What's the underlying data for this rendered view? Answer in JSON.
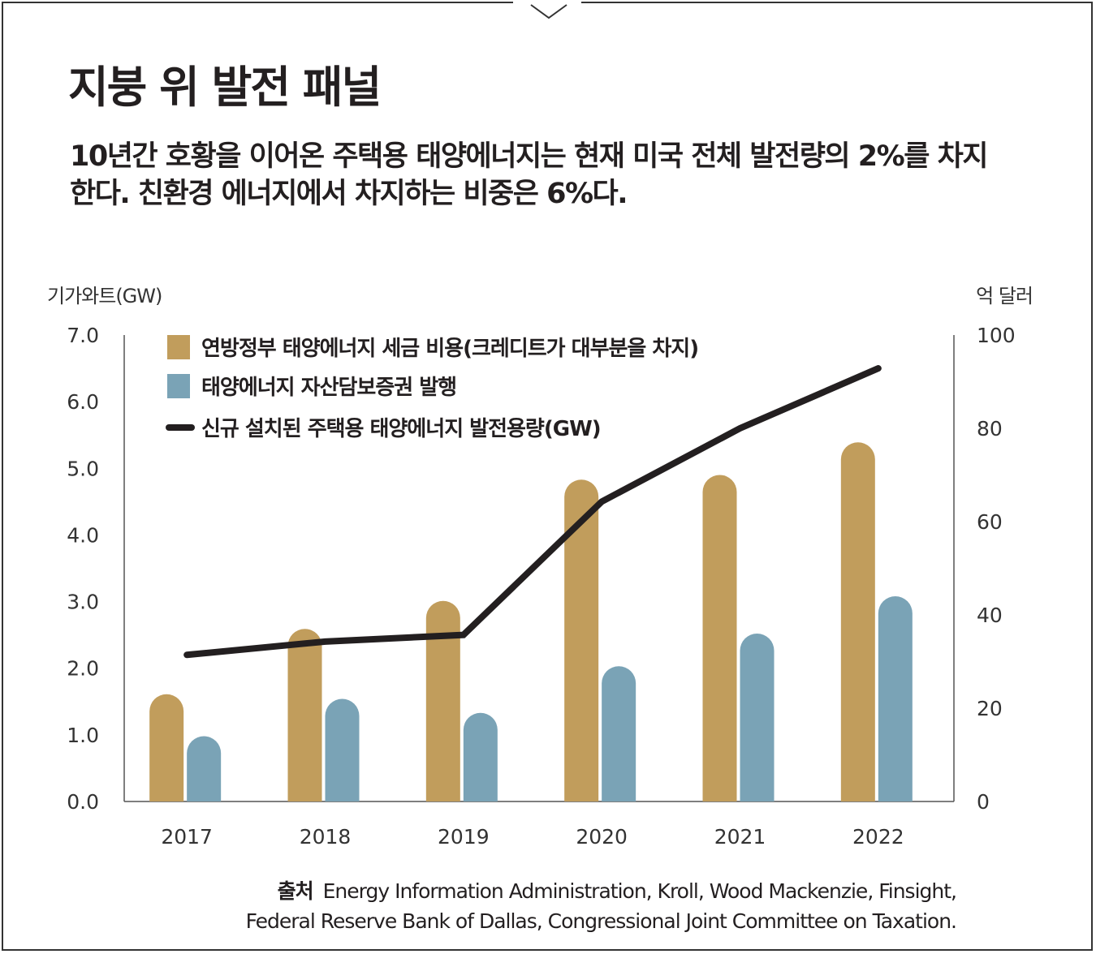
{
  "colors": {
    "tax_credit": "#c19d5c",
    "abs": "#7aa3b6",
    "line": "#231f20",
    "text": "#231f20",
    "frame": "#333333"
  },
  "header": {
    "title": "지붕 위 발전 패널",
    "subtitle": "10년간 호황을 이어온 주택용 태양에너지는 현재 미국 전체 발전량의 2%를 차지한다. 친환경 에너지에서 차지하는 비중은 6%다."
  },
  "source": {
    "label": "출처",
    "line1": "Energy Information Administration, Kroll, Wood Mackenzie, Finsight,",
    "line2": "Federal Reserve Bank of Dallas, Congressional Joint Committee on Taxation."
  },
  "chart_data": {
    "type": "bar",
    "categories": [
      "2017",
      "2018",
      "2019",
      "2020",
      "2021",
      "2022"
    ],
    "y_left": {
      "label": "기가와트(GW)",
      "ylim": [
        0,
        7
      ],
      "ticks": [
        "0.0",
        "1.0",
        "2.0",
        "3.0",
        "4.0",
        "5.0",
        "6.0",
        "7.0"
      ]
    },
    "y_right": {
      "label": "억 달러",
      "ylim": [
        0,
        100
      ],
      "ticks": [
        "0",
        "20",
        "40",
        "60",
        "80",
        "100"
      ]
    },
    "series": [
      {
        "name": "연방정부 태양에너지 세금 비용(크레디트가 대부분을 차지)",
        "kind": "bar",
        "axis": "right",
        "color": "#c19d5c",
        "values": [
          23,
          37,
          43,
          69,
          70,
          77
        ]
      },
      {
        "name": "태양에너지 자산담보증권 발행",
        "kind": "bar",
        "axis": "right",
        "color": "#7aa3b6",
        "values": [
          14,
          22,
          19,
          29,
          36,
          44
        ]
      },
      {
        "name": "신규 설치된 주택용 태양에너지 발전용량(GW)",
        "kind": "line",
        "axis": "left",
        "color": "#231f20",
        "values": [
          2.2,
          2.4,
          2.5,
          4.5,
          5.6,
          6.5
        ]
      }
    ],
    "grid": false,
    "legend_position": "top-left"
  }
}
